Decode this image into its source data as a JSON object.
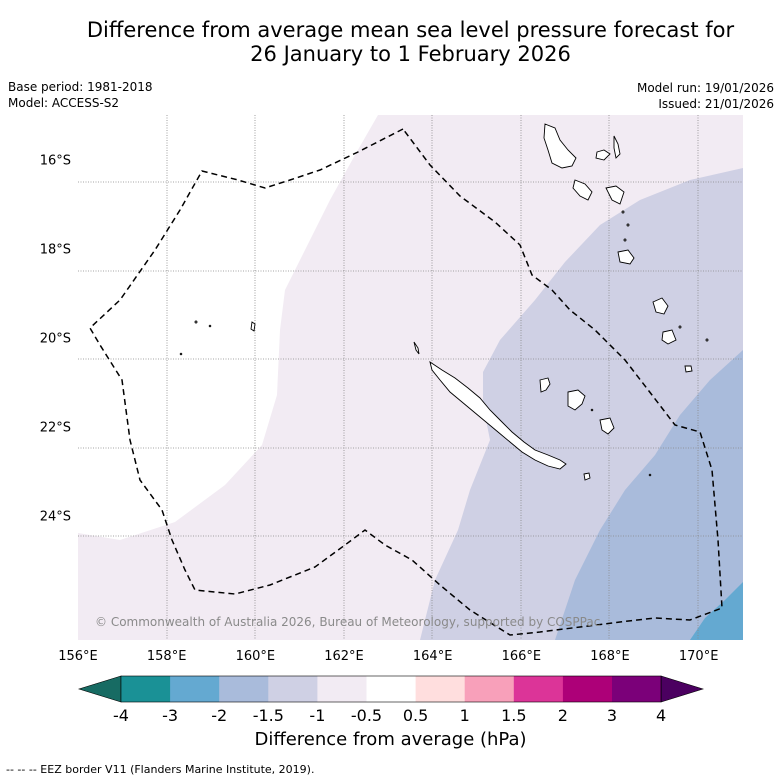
{
  "title": {
    "line1": "Difference from average mean sea level pressure forecast for",
    "line2": "26 January to 1 February 2026"
  },
  "meta": {
    "base_period": "Base period: 1981-2018",
    "model": "Model: ACCESS-S2",
    "model_run": "Model run: 19/01/2026",
    "issued": "Issued: 21/01/2026"
  },
  "map": {
    "lon_range": [
      156,
      171
    ],
    "lat_range": [
      -26.8,
      -15
    ],
    "lon_ticks": [
      "156°E",
      "158°E",
      "160°E",
      "162°E",
      "164°E",
      "166°E",
      "168°E",
      "170°E"
    ],
    "lat_ticks": [
      "16°S",
      "18°S",
      "20°S",
      "22°S",
      "24°S"
    ],
    "copyright": "© Commonwealth of Australia 2026, Bureau of Meteorology, supported by COSPPac"
  },
  "colorbar": {
    "label": "Difference from average (hPa)",
    "ticks": [
      "-4",
      "-3",
      "-2",
      "-1.5",
      "-1",
      "-0.5",
      "0.5",
      "1",
      "1.5",
      "2",
      "3",
      "4"
    ],
    "colors": [
      "#176b63",
      "#1a9196",
      "#64a9d1",
      "#a9bbdb",
      "#cfd0e4",
      "#f2ebf3",
      "#ffffff",
      "#ffdede",
      "#f8a0ba",
      "#dc3498",
      "#ad0078",
      "#7b0079",
      "#4b0060"
    ]
  },
  "footer": {
    "eez_legend": "--  --  -- EEZ border V11 (Flanders Marine Institute, 2019)."
  }
}
